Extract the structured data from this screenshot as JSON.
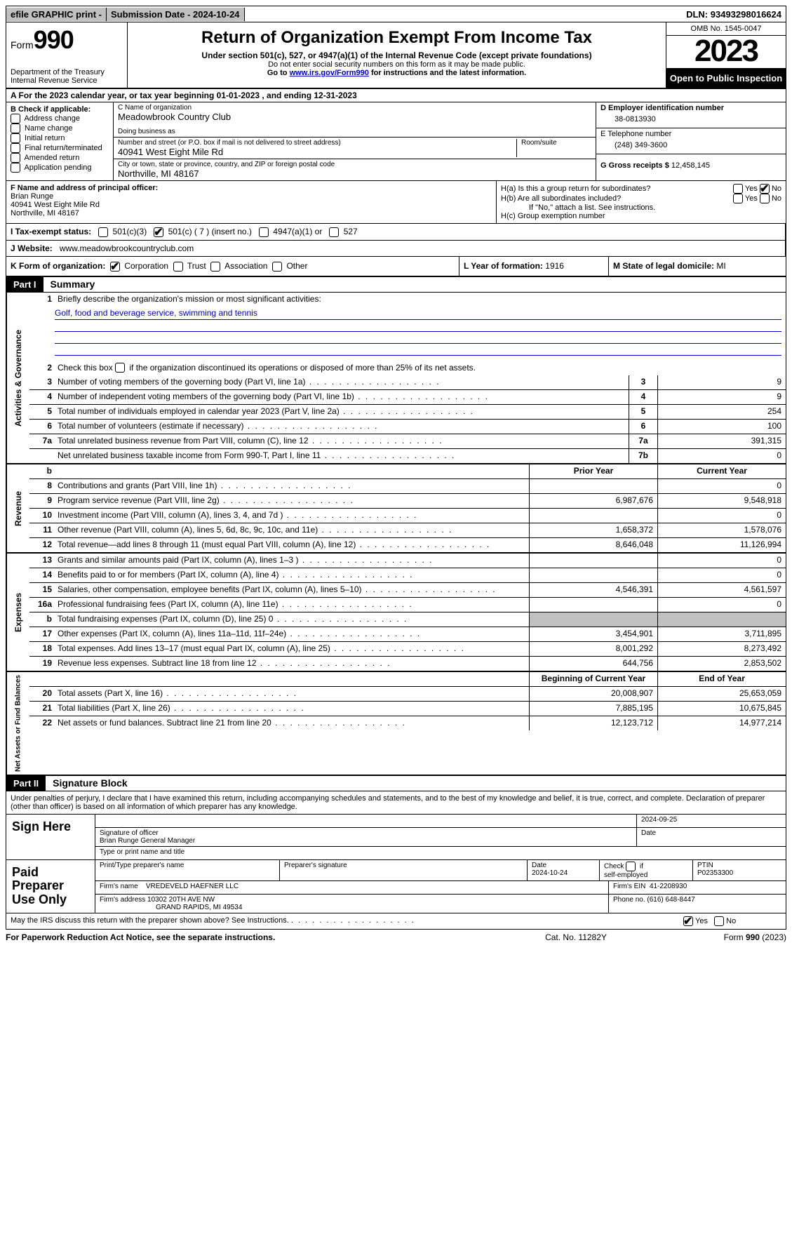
{
  "topbar": {
    "efile": "efile GRAPHIC print -",
    "submission": "Submission Date - 2024-10-24",
    "dln_label": "DLN:",
    "dln": "93493298016624"
  },
  "header": {
    "form_prefix": "Form",
    "form_number": "990",
    "dept1": "Department of the Treasury",
    "dept2": "Internal Revenue Service",
    "title": "Return of Organization Exempt From Income Tax",
    "subtitle": "Under section 501(c), 527, or 4947(a)(1) of the Internal Revenue Code (except private foundations)",
    "note1": "Do not enter social security numbers on this form as it may be made public.",
    "note2_pre": "Go to ",
    "note2_link": "www.irs.gov/Form990",
    "note2_post": " for instructions and the latest information.",
    "omb": "OMB No. 1545-0047",
    "year": "2023",
    "open": "Open to Public Inspection"
  },
  "rowA": {
    "text": "A For the 2023 calendar year, or tax year beginning 01-01-2023    , and ending 12-31-2023"
  },
  "boxB": {
    "label": "B Check if applicable:",
    "items": [
      "Address change",
      "Name change",
      "Initial return",
      "Final return/terminated",
      "Amended return",
      "Application pending"
    ]
  },
  "boxC": {
    "name_label": "C Name of organization",
    "name": "Meadowbrook Country Club",
    "dba_label": "Doing business as",
    "dba": "",
    "street_label": "Number and street (or P.O. box if mail is not delivered to street address)",
    "street": "40941 West Eight Mile Rd",
    "room_label": "Room/suite",
    "city_label": "City or town, state or province, country, and ZIP or foreign postal code",
    "city": "Northville, MI  48167"
  },
  "boxD": {
    "label": "D Employer identification number",
    "value": "38-0813930"
  },
  "boxE": {
    "label": "E Telephone number",
    "value": "(248) 349-3600"
  },
  "boxG": {
    "label": "G Gross receipts $",
    "value": "12,458,145"
  },
  "boxF": {
    "label": "F  Name and address of principal officer:",
    "name": "Brian Runge",
    "street": "40941 West Eight Mile Rd",
    "city": "Northville, MI  48167"
  },
  "boxH": {
    "a_label": "H(a)  Is this a group return for subordinates?",
    "b_label": "H(b)  Are all subordinates included?",
    "b_note": "If \"No,\" attach a list. See instructions.",
    "c_label": "H(c)  Group exemption number",
    "yes": "Yes",
    "no": "No"
  },
  "rowI": {
    "label": "I  Tax-exempt status:",
    "opt1": "501(c)(3)",
    "opt2": "501(c) ( 7 ) (insert no.)",
    "opt3": "4947(a)(1) or",
    "opt4": "527"
  },
  "rowJ": {
    "label": "J  Website:",
    "value": "www.meadowbrookcountryclub.com"
  },
  "rowK": {
    "label": "K Form of organization:",
    "corp": "Corporation",
    "trust": "Trust",
    "assoc": "Association",
    "other": "Other",
    "l_label": "L Year of formation:",
    "l_value": "1916",
    "m_label": "M State of legal domicile:",
    "m_value": "MI"
  },
  "part1": {
    "header": "Part I",
    "title": "Summary",
    "tabs": {
      "gov": "Activities & Governance",
      "rev": "Revenue",
      "exp": "Expenses",
      "net": "Net Assets or Fund Balances"
    },
    "line1_label": "Briefly describe the organization's mission or most significant activities:",
    "line1_text": "Golf, food and beverage service, swimming and tennis",
    "line2": "Check this box          if the organization discontinued its operations or disposed of more than 25% of its net assets.",
    "gov_lines": [
      {
        "n": "3",
        "t": "Number of voting members of the governing body (Part VI, line 1a)",
        "box": "3",
        "v": "9"
      },
      {
        "n": "4",
        "t": "Number of independent voting members of the governing body (Part VI, line 1b)",
        "box": "4",
        "v": "9"
      },
      {
        "n": "5",
        "t": "Total number of individuals employed in calendar year 2023 (Part V, line 2a)",
        "box": "5",
        "v": "254"
      },
      {
        "n": "6",
        "t": "Total number of volunteers (estimate if necessary)",
        "box": "6",
        "v": "100"
      },
      {
        "n": "7a",
        "t": "Total unrelated business revenue from Part VIII, column (C), line 12",
        "box": "7a",
        "v": "391,315"
      },
      {
        "n": "",
        "t": "Net unrelated business taxable income from Form 990-T, Part I, line 11",
        "box": "7b",
        "v": "0"
      }
    ],
    "col_prior": "Prior Year",
    "col_current": "Current Year",
    "rev_lines": [
      {
        "n": "8",
        "t": "Contributions and grants (Part VIII, line 1h)",
        "p": "",
        "c": "0"
      },
      {
        "n": "9",
        "t": "Program service revenue (Part VIII, line 2g)",
        "p": "6,987,676",
        "c": "9,548,918"
      },
      {
        "n": "10",
        "t": "Investment income (Part VIII, column (A), lines 3, 4, and 7d )",
        "p": "",
        "c": "0"
      },
      {
        "n": "11",
        "t": "Other revenue (Part VIII, column (A), lines 5, 6d, 8c, 9c, 10c, and 11e)",
        "p": "1,658,372",
        "c": "1,578,076"
      },
      {
        "n": "12",
        "t": "Total revenue—add lines 8 through 11 (must equal Part VIII, column (A), line 12)",
        "p": "8,646,048",
        "c": "11,126,994"
      }
    ],
    "exp_lines": [
      {
        "n": "13",
        "t": "Grants and similar amounts paid (Part IX, column (A), lines 1–3 )",
        "p": "",
        "c": "0"
      },
      {
        "n": "14",
        "t": "Benefits paid to or for members (Part IX, column (A), line 4)",
        "p": "",
        "c": "0"
      },
      {
        "n": "15",
        "t": "Salaries, other compensation, employee benefits (Part IX, column (A), lines 5–10)",
        "p": "4,546,391",
        "c": "4,561,597"
      },
      {
        "n": "16a",
        "t": "Professional fundraising fees (Part IX, column (A), line 11e)",
        "p": "",
        "c": "0"
      },
      {
        "n": "b",
        "t": "Total fundraising expenses (Part IX, column (D), line 25) 0",
        "p": "shade",
        "c": "shade"
      },
      {
        "n": "17",
        "t": "Other expenses (Part IX, column (A), lines 11a–11d, 11f–24e)",
        "p": "3,454,901",
        "c": "3,711,895"
      },
      {
        "n": "18",
        "t": "Total expenses. Add lines 13–17 (must equal Part IX, column (A), line 25)",
        "p": "8,001,292",
        "c": "8,273,492"
      },
      {
        "n": "19",
        "t": "Revenue less expenses. Subtract line 18 from line 12",
        "p": "644,756",
        "c": "2,853,502"
      }
    ],
    "col_begin": "Beginning of Current Year",
    "col_end": "End of Year",
    "net_lines": [
      {
        "n": "20",
        "t": "Total assets (Part X, line 16)",
        "p": "20,008,907",
        "c": "25,653,059"
      },
      {
        "n": "21",
        "t": "Total liabilities (Part X, line 26)",
        "p": "7,885,195",
        "c": "10,675,845"
      },
      {
        "n": "22",
        "t": "Net assets or fund balances. Subtract line 21 from line 20",
        "p": "12,123,712",
        "c": "14,977,214"
      }
    ]
  },
  "part2": {
    "header": "Part II",
    "title": "Signature Block",
    "declare": "Under penalties of perjury, I declare that I have examined this return, including accompanying schedules and statements, and to the best of my knowledge and belief, it is true, correct, and complete. Declaration of preparer (other than officer) is based on all information of which preparer has any knowledge.",
    "sign_here": "Sign Here",
    "sig_date": "2024-09-25",
    "sig_of_officer": "Signature of officer",
    "date_label": "Date",
    "officer_name": "Brian Runge  General Manager",
    "type_name": "Type or print name and title",
    "paid": "Paid Preparer Use Only",
    "prep_name_label": "Print/Type preparer's name",
    "prep_sig_label": "Preparer's signature",
    "prep_date": "2024-10-24",
    "check_self": "Check         if self-employed",
    "ptin_label": "PTIN",
    "ptin": "P02353300",
    "firm_name_label": "Firm's name",
    "firm_name": "VREDEVELD HAEFNER LLC",
    "firm_ein_label": "Firm's EIN",
    "firm_ein": "41-2208930",
    "firm_addr_label": "Firm's address",
    "firm_addr1": "10302 20TH AVE NW",
    "firm_addr2": "GRAND RAPIDS, MI  49534",
    "phone_label": "Phone no.",
    "phone": "(616) 648-8447",
    "discuss": "May the IRS discuss this return with the preparer shown above? See Instructions.",
    "yes": "Yes",
    "no": "No"
  },
  "footer": {
    "left": "For Paperwork Reduction Act Notice, see the separate instructions.",
    "center": "Cat. No. 11282Y",
    "right_pre": "Form ",
    "right_form": "990",
    "right_post": " (2023)"
  }
}
